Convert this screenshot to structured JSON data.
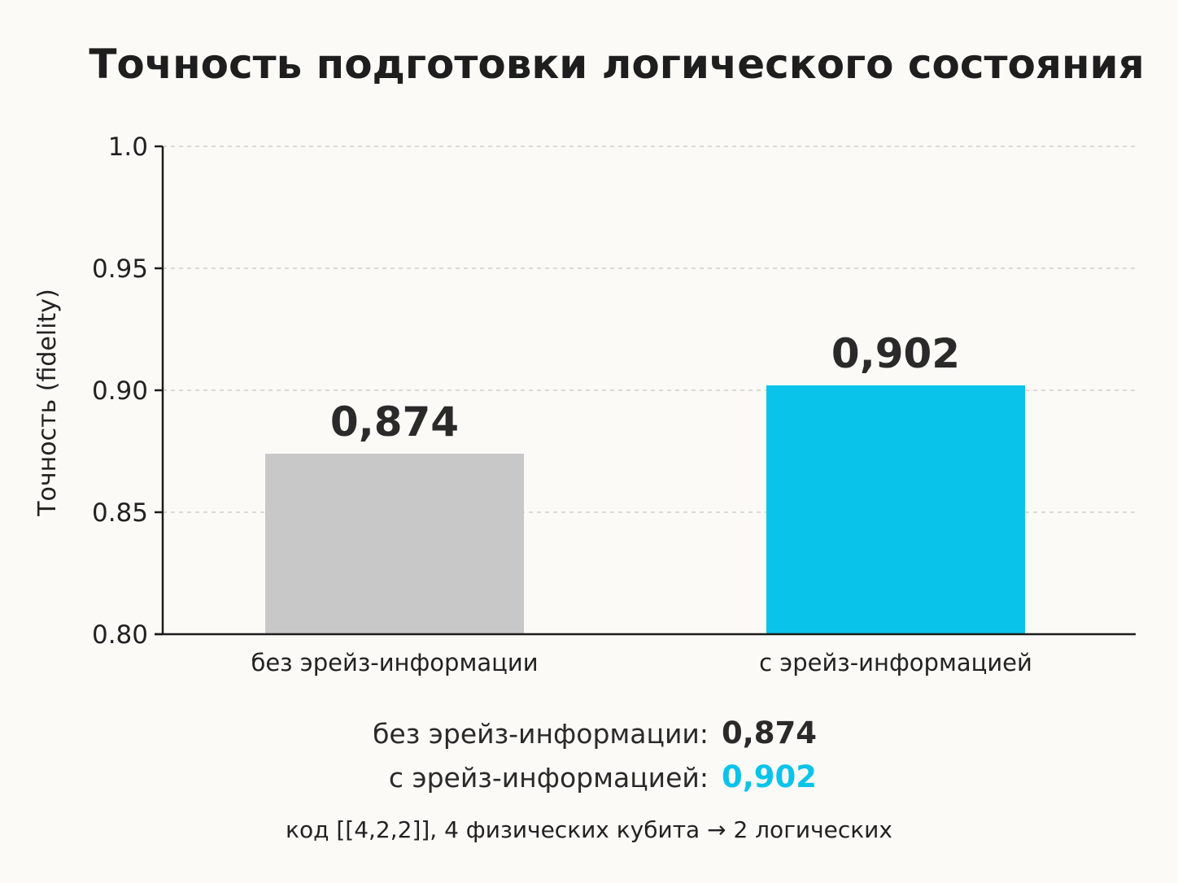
{
  "chart_data": {
    "type": "bar",
    "title": "Точность подготовки логического состояния",
    "ylabel": "Точность (fidelity)",
    "xlabel": "",
    "ylim": [
      0.8,
      1.0
    ],
    "yticks": [
      0.8,
      0.85,
      0.9,
      0.95,
      1.0
    ],
    "ytick_labels": [
      "0.80",
      "0.85",
      "0.90",
      "0.95",
      "1.0"
    ],
    "grid": true,
    "categories": [
      "без эрейз-информации",
      "с эрейз-информацией"
    ],
    "values": [
      0.874,
      0.902
    ],
    "value_labels": [
      "0,874",
      "0,902"
    ],
    "colors": [
      "#c8c8c8",
      "#0ac3ea"
    ]
  },
  "summary": {
    "row1_label": "без эрейз-информации:",
    "row1_value": "0,874",
    "row1_color": "#2a2a2a",
    "row2_label": "с эрейз-информацией:",
    "row2_value": "0,902",
    "row2_color": "#0ac3ea",
    "footnote": "код  [[4,2,2]], 4 физических кубита → 2 логических"
  }
}
